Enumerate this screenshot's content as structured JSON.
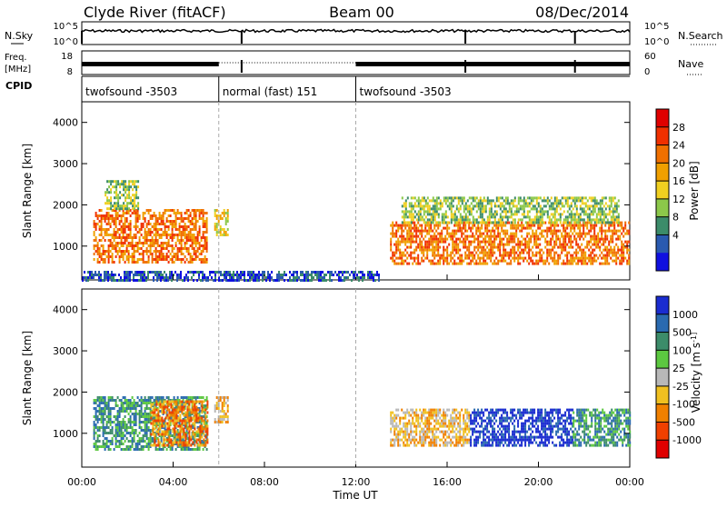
{
  "header": {
    "station": "Clyde River (fitACF)",
    "beam": "Beam 00",
    "date": "08/Dec/2014"
  },
  "noise_panel": {
    "left_label": "N.Sky",
    "left_ticks": [
      "10^5",
      "10^0"
    ],
    "right_ticks": [
      "10^5",
      "10^0"
    ],
    "right_label": "N.Search"
  },
  "freq_panel": {
    "left_label_lines": [
      "Freq.",
      "[MHz]"
    ],
    "left_ticks": [
      "18",
      "8"
    ],
    "right_ticks": [
      "60",
      "0"
    ],
    "right_label": "Nave"
  },
  "cpid_panel": {
    "label": "CPID",
    "segments": [
      {
        "start_hour": 0,
        "end_hour": 6,
        "label": "twofsound -3503"
      },
      {
        "start_hour": 6,
        "end_hour": 12,
        "label": "normal (fast) 151"
      },
      {
        "start_hour": 12,
        "end_hour": 24,
        "label": "twofsound -3503"
      }
    ]
  },
  "x_axis": {
    "title": "Time UT",
    "ticks": [
      "00:00",
      "04:00",
      "08:00",
      "12:00",
      "16:00",
      "20:00",
      "00:00"
    ],
    "range_hours": [
      0,
      24
    ]
  },
  "chart_data": [
    {
      "type": "heatmap",
      "parameter": "power",
      "ylabel": "Slant Range [km]",
      "ylim": [
        180,
        4500
      ],
      "yticks": [
        1000,
        2000,
        3000,
        4000
      ],
      "xlim_hours": [
        0,
        24
      ],
      "colorbar": {
        "label": "Power [dB]",
        "ticks": [
          "4",
          "8",
          "12",
          "16",
          "20",
          "24",
          "28"
        ],
        "range": [
          0,
          32
        ],
        "colors": [
          "#1010e0",
          "#2a5ab0",
          "#3c8c6a",
          "#8cc84a",
          "#f0d020",
          "#f0a000",
          "#f07000",
          "#f03000",
          "#e00000"
        ]
      },
      "echo_regions": [
        {
          "t": [
            0.5,
            5.5
          ],
          "r": [
            600,
            1900
          ],
          "level": 24
        },
        {
          "t": [
            1.0,
            2.5
          ],
          "r": [
            1900,
            2600
          ],
          "level": 14
        },
        {
          "t": [
            5.8,
            6.4
          ],
          "r": [
            1300,
            1900
          ],
          "level": 18
        },
        {
          "t": [
            13.5,
            24.0
          ],
          "r": [
            600,
            1600
          ],
          "level": 26
        },
        {
          "t": [
            14.0,
            23.5
          ],
          "r": [
            1600,
            2200
          ],
          "level": 14
        },
        {
          "t": [
            0.0,
            13.0
          ],
          "r": [
            180,
            400
          ],
          "level": 6
        }
      ]
    },
    {
      "type": "heatmap",
      "parameter": "velocity",
      "ylabel": "Slant Range [km]",
      "ylim": [
        180,
        4500
      ],
      "yticks": [
        1000,
        2000,
        3000,
        4000
      ],
      "xlim_hours": [
        0,
        24
      ],
      "colorbar": {
        "label": "Velocity [m s^-1]",
        "ticks": [
          "1000",
          "500",
          "100",
          "25",
          "-25",
          "-100",
          "-500",
          "-1000"
        ],
        "colors": [
          "#1a2cd0",
          "#2a6ab0",
          "#3c8c6a",
          "#5cc840",
          "#b8b8b8",
          "#f0c020",
          "#f08000",
          "#f04000",
          "#e00000"
        ]
      },
      "echo_regions": [
        {
          "t": [
            0.5,
            5.5
          ],
          "r": [
            600,
            1900
          ],
          "level": 100
        },
        {
          "t": [
            3.0,
            5.5
          ],
          "r": [
            700,
            1800
          ],
          "level": -300
        },
        {
          "t": [
            5.8,
            6.4
          ],
          "r": [
            1300,
            1900
          ],
          "level": -200
        },
        {
          "t": [
            13.5,
            17.0
          ],
          "r": [
            700,
            1600
          ],
          "level": -200
        },
        {
          "t": [
            17.0,
            21.5
          ],
          "r": [
            700,
            1600
          ],
          "level": 800
        },
        {
          "t": [
            21.5,
            24.0
          ],
          "r": [
            700,
            1600
          ],
          "level": 100
        }
      ]
    }
  ]
}
